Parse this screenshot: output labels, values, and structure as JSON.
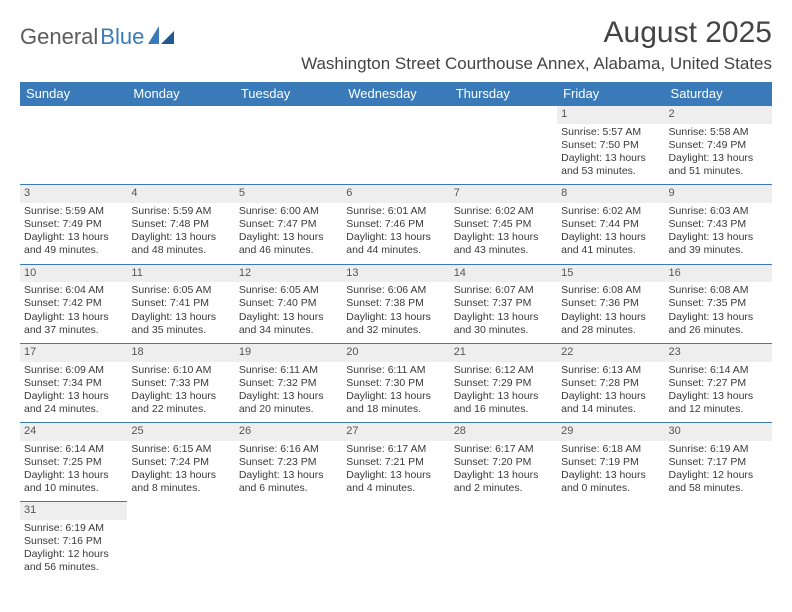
{
  "logo": {
    "text1": "General",
    "text2": "Blue"
  },
  "title": "August 2025",
  "location": "Washington Street Courthouse Annex, Alabama, United States",
  "colors": {
    "header_bg": "#3a7ab8",
    "header_text": "#ffffff",
    "border": "#3a7ab8",
    "daynum_bg": "#eeeeee",
    "text": "#3a3a3a"
  },
  "weekdays": [
    "Sunday",
    "Monday",
    "Tuesday",
    "Wednesday",
    "Thursday",
    "Friday",
    "Saturday"
  ],
  "weeks": [
    [
      null,
      null,
      null,
      null,
      null,
      {
        "n": "1",
        "sr": "Sunrise: 5:57 AM",
        "ss": "Sunset: 7:50 PM",
        "d1": "Daylight: 13 hours",
        "d2": "and 53 minutes."
      },
      {
        "n": "2",
        "sr": "Sunrise: 5:58 AM",
        "ss": "Sunset: 7:49 PM",
        "d1": "Daylight: 13 hours",
        "d2": "and 51 minutes."
      }
    ],
    [
      {
        "n": "3",
        "sr": "Sunrise: 5:59 AM",
        "ss": "Sunset: 7:49 PM",
        "d1": "Daylight: 13 hours",
        "d2": "and 49 minutes."
      },
      {
        "n": "4",
        "sr": "Sunrise: 5:59 AM",
        "ss": "Sunset: 7:48 PM",
        "d1": "Daylight: 13 hours",
        "d2": "and 48 minutes."
      },
      {
        "n": "5",
        "sr": "Sunrise: 6:00 AM",
        "ss": "Sunset: 7:47 PM",
        "d1": "Daylight: 13 hours",
        "d2": "and 46 minutes."
      },
      {
        "n": "6",
        "sr": "Sunrise: 6:01 AM",
        "ss": "Sunset: 7:46 PM",
        "d1": "Daylight: 13 hours",
        "d2": "and 44 minutes."
      },
      {
        "n": "7",
        "sr": "Sunrise: 6:02 AM",
        "ss": "Sunset: 7:45 PM",
        "d1": "Daylight: 13 hours",
        "d2": "and 43 minutes."
      },
      {
        "n": "8",
        "sr": "Sunrise: 6:02 AM",
        "ss": "Sunset: 7:44 PM",
        "d1": "Daylight: 13 hours",
        "d2": "and 41 minutes."
      },
      {
        "n": "9",
        "sr": "Sunrise: 6:03 AM",
        "ss": "Sunset: 7:43 PM",
        "d1": "Daylight: 13 hours",
        "d2": "and 39 minutes."
      }
    ],
    [
      {
        "n": "10",
        "sr": "Sunrise: 6:04 AM",
        "ss": "Sunset: 7:42 PM",
        "d1": "Daylight: 13 hours",
        "d2": "and 37 minutes."
      },
      {
        "n": "11",
        "sr": "Sunrise: 6:05 AM",
        "ss": "Sunset: 7:41 PM",
        "d1": "Daylight: 13 hours",
        "d2": "and 35 minutes."
      },
      {
        "n": "12",
        "sr": "Sunrise: 6:05 AM",
        "ss": "Sunset: 7:40 PM",
        "d1": "Daylight: 13 hours",
        "d2": "and 34 minutes."
      },
      {
        "n": "13",
        "sr": "Sunrise: 6:06 AM",
        "ss": "Sunset: 7:38 PM",
        "d1": "Daylight: 13 hours",
        "d2": "and 32 minutes."
      },
      {
        "n": "14",
        "sr": "Sunrise: 6:07 AM",
        "ss": "Sunset: 7:37 PM",
        "d1": "Daylight: 13 hours",
        "d2": "and 30 minutes."
      },
      {
        "n": "15",
        "sr": "Sunrise: 6:08 AM",
        "ss": "Sunset: 7:36 PM",
        "d1": "Daylight: 13 hours",
        "d2": "and 28 minutes."
      },
      {
        "n": "16",
        "sr": "Sunrise: 6:08 AM",
        "ss": "Sunset: 7:35 PM",
        "d1": "Daylight: 13 hours",
        "d2": "and 26 minutes."
      }
    ],
    [
      {
        "n": "17",
        "sr": "Sunrise: 6:09 AM",
        "ss": "Sunset: 7:34 PM",
        "d1": "Daylight: 13 hours",
        "d2": "and 24 minutes."
      },
      {
        "n": "18",
        "sr": "Sunrise: 6:10 AM",
        "ss": "Sunset: 7:33 PM",
        "d1": "Daylight: 13 hours",
        "d2": "and 22 minutes."
      },
      {
        "n": "19",
        "sr": "Sunrise: 6:11 AM",
        "ss": "Sunset: 7:32 PM",
        "d1": "Daylight: 13 hours",
        "d2": "and 20 minutes."
      },
      {
        "n": "20",
        "sr": "Sunrise: 6:11 AM",
        "ss": "Sunset: 7:30 PM",
        "d1": "Daylight: 13 hours",
        "d2": "and 18 minutes."
      },
      {
        "n": "21",
        "sr": "Sunrise: 6:12 AM",
        "ss": "Sunset: 7:29 PM",
        "d1": "Daylight: 13 hours",
        "d2": "and 16 minutes."
      },
      {
        "n": "22",
        "sr": "Sunrise: 6:13 AM",
        "ss": "Sunset: 7:28 PM",
        "d1": "Daylight: 13 hours",
        "d2": "and 14 minutes."
      },
      {
        "n": "23",
        "sr": "Sunrise: 6:14 AM",
        "ss": "Sunset: 7:27 PM",
        "d1": "Daylight: 13 hours",
        "d2": "and 12 minutes."
      }
    ],
    [
      {
        "n": "24",
        "sr": "Sunrise: 6:14 AM",
        "ss": "Sunset: 7:25 PM",
        "d1": "Daylight: 13 hours",
        "d2": "and 10 minutes."
      },
      {
        "n": "25",
        "sr": "Sunrise: 6:15 AM",
        "ss": "Sunset: 7:24 PM",
        "d1": "Daylight: 13 hours",
        "d2": "and 8 minutes."
      },
      {
        "n": "26",
        "sr": "Sunrise: 6:16 AM",
        "ss": "Sunset: 7:23 PM",
        "d1": "Daylight: 13 hours",
        "d2": "and 6 minutes."
      },
      {
        "n": "27",
        "sr": "Sunrise: 6:17 AM",
        "ss": "Sunset: 7:21 PM",
        "d1": "Daylight: 13 hours",
        "d2": "and 4 minutes."
      },
      {
        "n": "28",
        "sr": "Sunrise: 6:17 AM",
        "ss": "Sunset: 7:20 PM",
        "d1": "Daylight: 13 hours",
        "d2": "and 2 minutes."
      },
      {
        "n": "29",
        "sr": "Sunrise: 6:18 AM",
        "ss": "Sunset: 7:19 PM",
        "d1": "Daylight: 13 hours",
        "d2": "and 0 minutes."
      },
      {
        "n": "30",
        "sr": "Sunrise: 6:19 AM",
        "ss": "Sunset: 7:17 PM",
        "d1": "Daylight: 12 hours",
        "d2": "and 58 minutes."
      }
    ],
    [
      {
        "n": "31",
        "sr": "Sunrise: 6:19 AM",
        "ss": "Sunset: 7:16 PM",
        "d1": "Daylight: 12 hours",
        "d2": "and 56 minutes."
      },
      null,
      null,
      null,
      null,
      null,
      null
    ]
  ]
}
